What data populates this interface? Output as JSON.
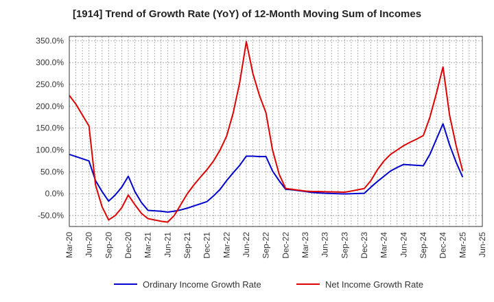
{
  "chart_data": {
    "type": "line",
    "title": "[1914]  Trend of Growth Rate (YoY) of 12-Month Moving Sum of Incomes",
    "xlabel": "",
    "ylabel": "",
    "ylim": [
      -75,
      360
    ],
    "yticks": [
      350,
      300,
      250,
      200,
      150,
      100,
      50,
      0,
      -50
    ],
    "ytick_labels": [
      "350.0%",
      "300.0%",
      "250.0%",
      "200.0%",
      "150.0%",
      "100.0%",
      "50.0%",
      "0.0%",
      "-50.0%"
    ],
    "xtick_labels": [
      "Mar-20",
      "Jun-20",
      "Sep-20",
      "Dec-20",
      "Mar-21",
      "Jun-21",
      "Sep-21",
      "Dec-21",
      "Mar-22",
      "Jun-22",
      "Sep-22",
      "Dec-22",
      "Mar-23",
      "Jun-23",
      "Sep-23",
      "Dec-23",
      "Mar-24",
      "Jun-24",
      "Sep-24",
      "Dec-24",
      "Mar-25",
      "Jun-25"
    ],
    "grid": true,
    "legend_position": "bottom",
    "x": [
      "Mar-20",
      "Apr-20",
      "May-20",
      "Jun-20",
      "Jul-20",
      "Aug-20",
      "Sep-20",
      "Oct-20",
      "Nov-20",
      "Dec-20",
      "Jan-21",
      "Feb-21",
      "Mar-21",
      "Apr-21",
      "May-21",
      "Jun-21",
      "Jul-21",
      "Aug-21",
      "Sep-21",
      "Oct-21",
      "Nov-21",
      "Dec-21",
      "Jan-22",
      "Feb-22",
      "Mar-22",
      "Apr-22",
      "May-22",
      "Jun-22",
      "Jul-22",
      "Aug-22",
      "Sep-22",
      "Oct-22",
      "Nov-22",
      "Dec-22",
      "Jan-23",
      "Feb-23",
      "Mar-23",
      "Apr-23",
      "May-23",
      "Jun-23",
      "Jul-23",
      "Aug-23",
      "Sep-23",
      "Oct-23",
      "Nov-23",
      "Dec-23",
      "Jan-24",
      "Feb-24",
      "Mar-24",
      "Apr-24",
      "May-24",
      "Jun-24",
      "Jul-24",
      "Aug-24",
      "Sep-24",
      "Oct-24",
      "Nov-24",
      "Dec-24",
      "Jan-25",
      "Feb-25",
      "Mar-25"
    ],
    "series": [
      {
        "name": "Ordinary Income Growth Rate",
        "color": "#0000cc",
        "values": [
          90,
          85,
          80,
          75,
          30,
          5,
          -17,
          -3,
          15,
          40,
          5,
          -20,
          -38,
          -39,
          -40,
          -42,
          -40,
          -37,
          -33,
          -28,
          -23,
          -18,
          -5,
          10,
          30,
          48,
          65,
          86,
          86,
          85,
          85,
          52,
          30,
          10,
          9,
          7,
          5,
          3,
          2,
          1,
          0.5,
          0,
          -0.5,
          0,
          0.5,
          1,
          15,
          28,
          40,
          52,
          60,
          67,
          66,
          65,
          64,
          90,
          125,
          160,
          112,
          72,
          38
        ]
      },
      {
        "name": "Net Income Growth Rate",
        "color": "#dd0000",
        "values": [
          225,
          205,
          180,
          155,
          20,
          -30,
          -60,
          -50,
          -32,
          -3,
          -25,
          -45,
          -57,
          -60,
          -63,
          -65,
          -50,
          -25,
          0,
          20,
          38,
          55,
          75,
          100,
          132,
          185,
          255,
          348,
          275,
          225,
          185,
          100,
          45,
          12,
          10,
          8,
          6,
          5,
          5,
          4.5,
          4.3,
          4,
          3.5,
          6,
          9,
          12,
          30,
          55,
          75,
          90,
          100,
          110,
          118,
          125,
          133,
          175,
          230,
          290,
          180,
          110,
          52
        ]
      }
    ]
  }
}
